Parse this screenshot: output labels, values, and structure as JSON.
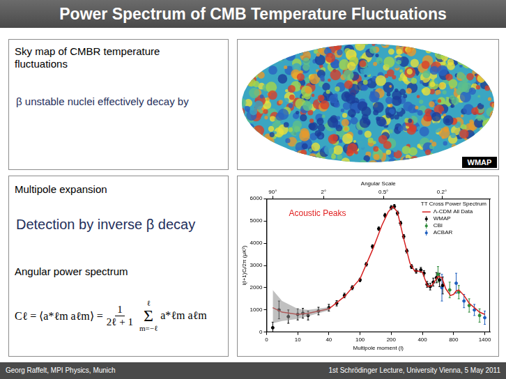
{
  "slide": {
    "title": "Power Spectrum of CMB Temperature Fluctuations",
    "sky_panel": {
      "label": "Sky map of CMBR temperature fluctuations",
      "overlay": "β unstable nuclei effectively decay by"
    },
    "multipole_panel": {
      "label": "Multipole expansion",
      "overlay": "Detection by inverse β decay",
      "label2": "Angular power spectrum",
      "formula": {
        "lhs": "Cℓ = ⟨a*ℓm aℓm⟩ =",
        "numerator": "1",
        "denominator": "2ℓ + 1",
        "sum": "Σ",
        "sum_upper": "ℓ",
        "sum_lower": "m=−ℓ",
        "term": "a*ℓm aℓm"
      }
    },
    "sky_map": {
      "credit": "WMAP"
    },
    "footer": {
      "left": "Georg Raffelt, MPI Physics, Munich",
      "right": "1st Schrödinger Lecture, University Vienna, 5 May 2011"
    }
  },
  "chart_data": {
    "type": "scatter",
    "title": "TT Cross Power Spectrum",
    "x_label": "Multipole moment (l)",
    "y_label": "l(l+1)Cₗ/2π (μK²)",
    "x2_label": "Angular Scale",
    "annotations": [
      "Acoustic Peaks"
    ],
    "xlim": [
      0,
      1500
    ],
    "xticks": [
      0,
      10,
      40,
      100,
      200,
      400,
      800,
      1400
    ],
    "x2ticks": [
      {
        "value": 2,
        "label": "90°"
      },
      {
        "value": 35,
        "label": "2°"
      },
      {
        "value": 175,
        "label": "0.5°"
      },
      {
        "value": 650,
        "label": "0.2°"
      }
    ],
    "ylim": [
      0,
      6000
    ],
    "yticks": [
      0,
      1000,
      2000,
      3000,
      4000,
      5000,
      6000
    ],
    "grid": false,
    "legend": "upper right",
    "series": [
      {
        "name": "Λ-CDM All Data",
        "type": "line",
        "color": "#d62020",
        "x": [
          2,
          5,
          10,
          20,
          40,
          70,
          100,
          140,
          170,
          190,
          210,
          240,
          280,
          320,
          350,
          370,
          400,
          430,
          470,
          520,
          560,
          600,
          650,
          700,
          760,
          800,
          850,
          900,
          1000,
          1100,
          1200,
          1300,
          1400
        ],
        "values": [
          1100,
          900,
          800,
          850,
          1050,
          1600,
          2400,
          3700,
          4800,
          5400,
          5650,
          5400,
          4200,
          3100,
          2750,
          2750,
          2700,
          2400,
          2050,
          2100,
          2300,
          2500,
          2450,
          1950,
          1650,
          1700,
          1850,
          1900,
          1650,
          1300,
          1100,
          900,
          800
        ],
        "band_low": [
          400,
          500,
          600,
          720,
          980,
          null,
          null,
          null,
          null,
          null,
          null,
          null,
          null,
          null,
          null,
          null,
          null,
          null,
          null,
          null,
          null,
          null,
          null,
          null,
          null,
          null,
          null,
          null,
          null,
          null,
          null,
          null,
          null
        ],
        "band_high": [
          1900,
          1400,
          1050,
          1000,
          1120,
          null,
          null,
          null,
          null,
          null,
          null,
          null,
          null,
          null,
          null,
          null,
          null,
          null,
          null,
          null,
          null,
          null,
          null,
          null,
          null,
          null,
          null,
          null,
          null,
          null,
          null,
          null,
          null
        ]
      },
      {
        "name": "WMAP",
        "type": "scatter",
        "color": "#000000",
        "marker": "circle",
        "x": [
          2,
          4,
          7,
          10,
          15,
          20,
          30,
          40,
          55,
          70,
          85,
          100,
          120,
          140,
          160,
          180,
          200,
          220,
          240,
          260,
          280,
          300,
          330,
          360,
          390,
          420,
          460,
          500,
          540,
          580,
          620,
          660
        ],
        "values": [
          200,
          1000,
          700,
          800,
          850,
          750,
          950,
          1100,
          1300,
          1650,
          2000,
          2350,
          3050,
          3850,
          4650,
          5250,
          5600,
          5650,
          5350,
          4900,
          4300,
          3650,
          2950,
          2750,
          2800,
          2650,
          2150,
          2050,
          2250,
          2450,
          2350,
          2100
        ],
        "errors": [
          250,
          400,
          300,
          250,
          220,
          200,
          170,
          150,
          120,
          100,
          90,
          80,
          80,
          80,
          80,
          90,
          90,
          90,
          90,
          90,
          90,
          90,
          90,
          100,
          110,
          120,
          130,
          150,
          180,
          230,
          300,
          380
        ]
      },
      {
        "name": "CBI",
        "type": "scatter",
        "color": "#2e8b3a",
        "marker": "circle",
        "x": [
          600,
          750,
          900,
          1100,
          1300
        ],
        "values": [
          2600,
          1900,
          1800,
          1200,
          750
        ],
        "errors": [
          350,
          350,
          300,
          300,
          300
        ]
      },
      {
        "name": "ACBAR",
        "type": "scatter",
        "color": "#1f5fbf",
        "marker": "circle",
        "x": [
          650,
          850,
          1000,
          1200,
          1400
        ],
        "values": [
          2000,
          2200,
          1400,
          1000,
          650
        ],
        "errors": [
          600,
          450,
          300,
          250,
          300
        ]
      }
    ]
  }
}
